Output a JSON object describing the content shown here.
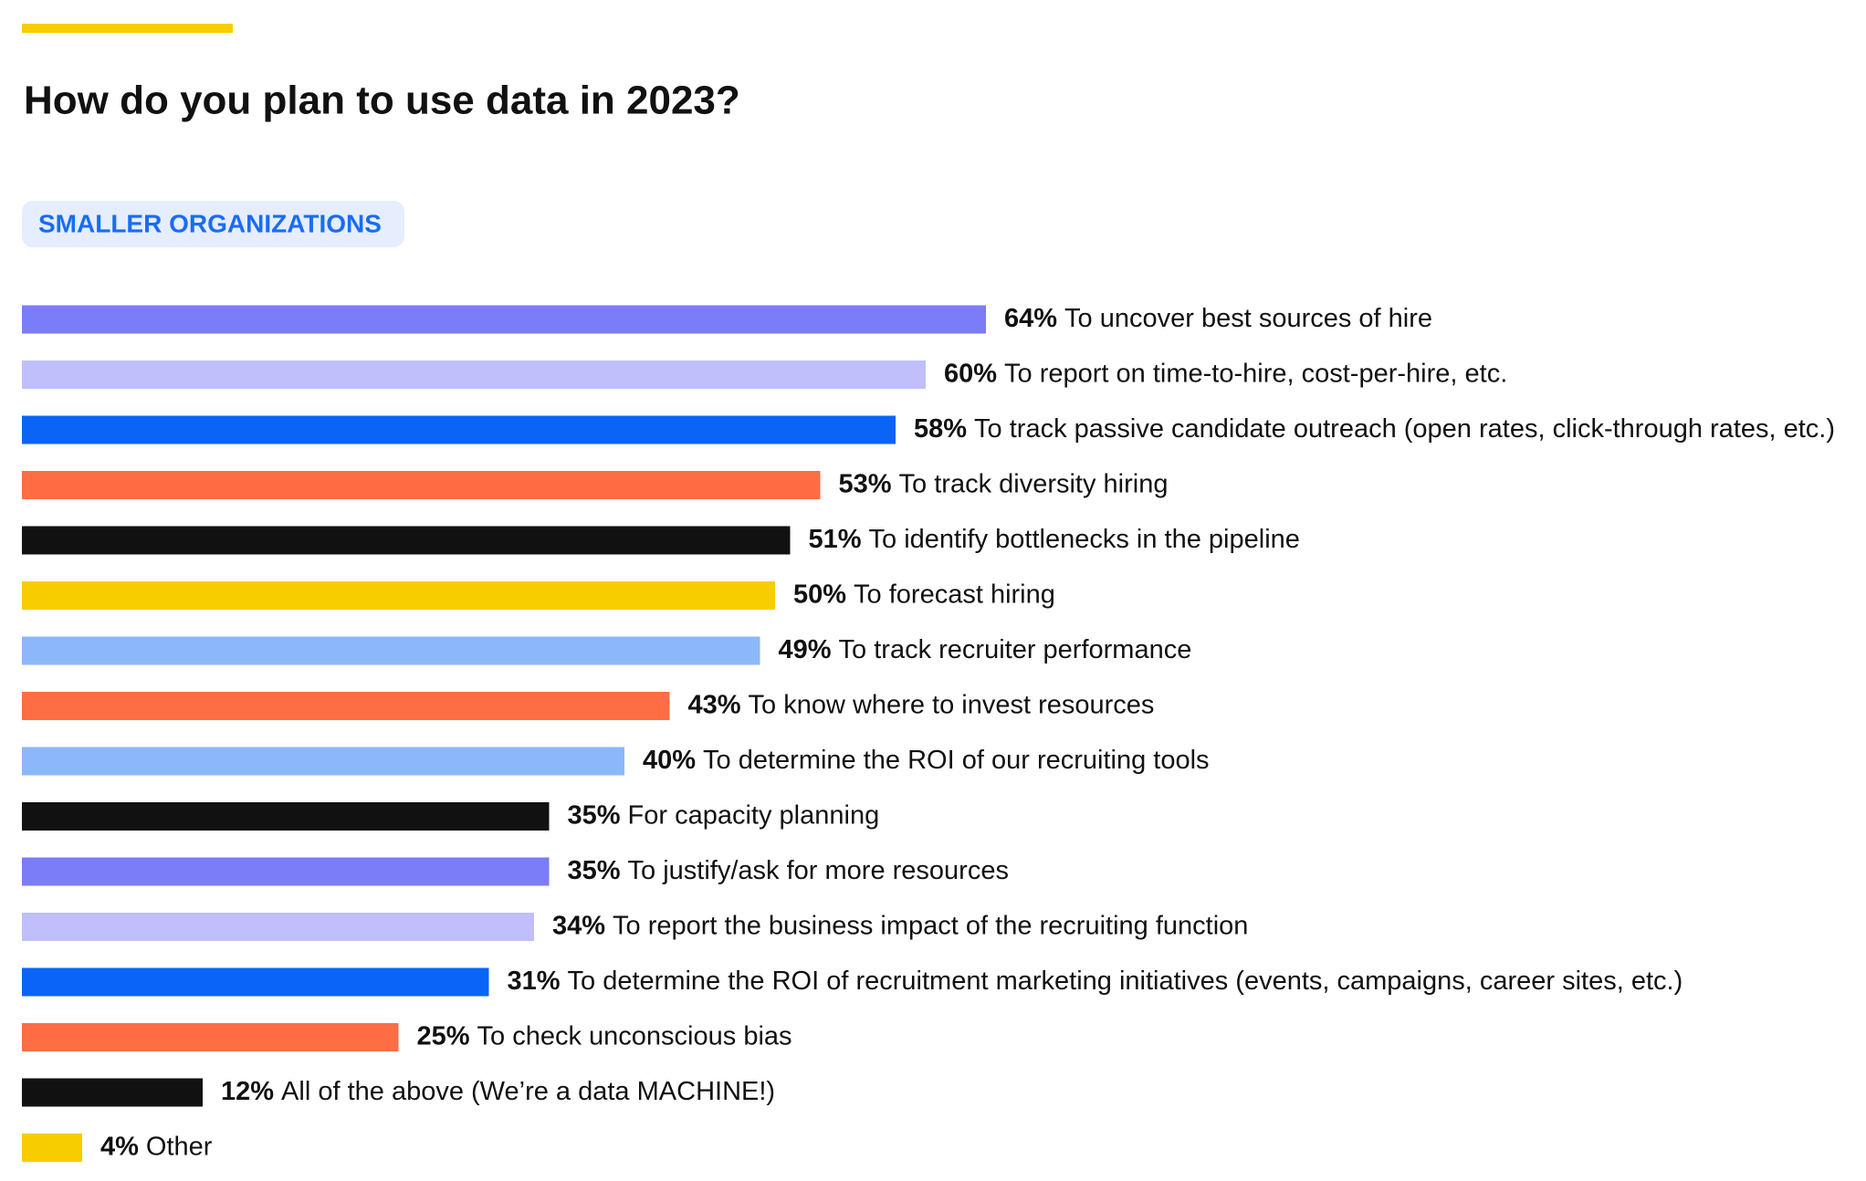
{
  "chart_data": {
    "type": "bar",
    "orientation": "horizontal",
    "title": "How do you plan to use data in 2023?",
    "subtitle": "SMALLER ORGANIZATIONS",
    "categories": [
      "To uncover best sources of hire",
      "To report on time-to-hire, cost-per-hire, etc.",
      "To track passive candidate outreach (open rates, click-through rates, etc.)",
      "To track diversity hiring",
      "To identify bottlenecks in the pipeline",
      "To forecast hiring",
      "To track recruiter performance",
      "To know where to invest resources",
      "To determine the ROI of our recruiting tools",
      "For capacity planning",
      "To justify/ask for more resources",
      "To report the business impact of the recruiting function",
      "To determine the ROI of recruitment marketing initiatives (events, campaigns, career sites, etc.)",
      "To check unconscious bias",
      "All of the above (We’re a data MACHINE!)",
      "Other"
    ],
    "values": [
      64,
      60,
      58,
      53,
      51,
      50,
      49,
      43,
      40,
      35,
      35,
      34,
      31,
      25,
      12,
      4
    ],
    "value_labels": [
      "64%",
      "60%",
      "58%",
      "53%",
      "51%",
      "50%",
      "49%",
      "43%",
      "40%",
      "35%",
      "35%",
      "34%",
      "31%",
      "25%",
      "12%",
      "4%"
    ],
    "colors": [
      "#7b7cf8",
      "#c0bffc",
      "#0a64f5",
      "#ff6d45",
      "#111111",
      "#f7cd00",
      "#8cb8fa",
      "#ff6d45",
      "#8cb8fa",
      "#111111",
      "#7b7cf8",
      "#c0bffc",
      "#0a64f5",
      "#ff6d45",
      "#111111",
      "#f7cd00"
    ],
    "xlim": [
      0,
      100
    ]
  }
}
